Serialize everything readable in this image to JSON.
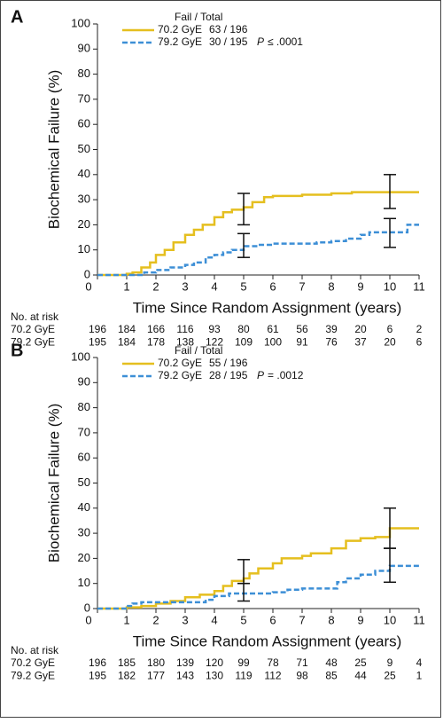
{
  "chart_data": [
    {
      "type": "line",
      "panel": "A",
      "step": true,
      "xlabel": "Time Since Random Assignment (years)",
      "ylabel": "Biochemical Failure (%)",
      "xlim": [
        0,
        11
      ],
      "xticks": [
        0,
        1,
        2,
        3,
        4,
        5,
        6,
        7,
        8,
        9,
        10,
        11
      ],
      "ylim": [
        0,
        100
      ],
      "yticks": [
        0,
        10,
        20,
        30,
        40,
        50,
        60,
        70,
        80,
        90,
        100
      ],
      "legend_title": "Fail / Total",
      "p_label": "P",
      "p_text": "≤ .0001",
      "series": [
        {
          "name": "70.2 GyE",
          "counts": "63 / 196",
          "color": "#e5bf1f",
          "dashed": false,
          "x": [
            0,
            0.5,
            1,
            1.2,
            1.5,
            1.8,
            2,
            2.3,
            2.6,
            3,
            3.3,
            3.6,
            4,
            4.3,
            4.6,
            5,
            5.3,
            5.7,
            6,
            7,
            8,
            8.7,
            11
          ],
          "values": [
            0,
            0,
            0.5,
            1,
            3,
            5,
            8,
            10,
            13,
            16,
            18,
            20,
            23,
            25,
            26,
            27,
            29,
            31,
            31.5,
            32,
            32.5,
            33,
            33
          ],
          "ci": [
            {
              "x": 5,
              "low": 20,
              "high": 32.5
            },
            {
              "x": 10,
              "low": 26.5,
              "high": 40
            }
          ]
        },
        {
          "name": "79.2 GyE",
          "counts": "30 / 195",
          "color": "#3d8fd6",
          "dashed": true,
          "x": [
            0,
            1.5,
            1.6,
            2,
            2.5,
            3,
            3.3,
            3.7,
            4,
            4.3,
            4.6,
            5,
            5.5,
            6,
            7.5,
            8,
            8.5,
            9,
            9.3,
            10.6,
            11
          ],
          "values": [
            0,
            0,
            1,
            2,
            3,
            4,
            5,
            7,
            8,
            9,
            10,
            11.5,
            12,
            12.5,
            13,
            13.5,
            14.5,
            16,
            17,
            20,
            20
          ],
          "ci": [
            {
              "x": 5,
              "low": 7,
              "high": 16.5
            },
            {
              "x": 10,
              "low": 11,
              "high": 22.5
            }
          ]
        }
      ],
      "risk_table": {
        "title": "No. at risk",
        "rows": [
          {
            "label": "70.2 GyE",
            "values": [
              196,
              184,
              166,
              116,
              93,
              80,
              61,
              56,
              39,
              20,
              6,
              2
            ]
          },
          {
            "label": "79.2 GyE",
            "values": [
              195,
              184,
              178,
              138,
              122,
              109,
              100,
              91,
              76,
              37,
              20,
              6
            ]
          }
        ]
      }
    },
    {
      "type": "line",
      "panel": "B",
      "step": true,
      "xlabel": "Time Since Random Assignment (years)",
      "ylabel": "Biochemical Failure (%)",
      "xlim": [
        0,
        11
      ],
      "xticks": [
        0,
        1,
        2,
        3,
        4,
        5,
        6,
        7,
        8,
        9,
        10,
        11
      ],
      "ylim": [
        0,
        100
      ],
      "yticks": [
        0,
        10,
        20,
        30,
        40,
        50,
        60,
        70,
        80,
        90,
        100
      ],
      "legend_title": "Fail / Total",
      "p_label": "P",
      "p_text": "= .0012",
      "series": [
        {
          "name": "70.2 GyE",
          "counts": "55 / 196",
          "color": "#e5bf1f",
          "dashed": false,
          "x": [
            0,
            0.5,
            1,
            1.5,
            2,
            2.5,
            3,
            3.5,
            4,
            4.3,
            4.6,
            5,
            5.2,
            5.5,
            6,
            6.3,
            7,
            7.3,
            8,
            8.5,
            9,
            9.5,
            10,
            11
          ],
          "values": [
            0,
            0,
            0.5,
            1,
            2,
            3,
            4.5,
            5.5,
            7,
            9,
            11,
            12,
            14,
            16,
            18,
            20,
            21,
            22,
            24,
            27,
            28,
            28.5,
            32,
            32
          ],
          "ci": [
            {
              "x": 5,
              "low": 10,
              "high": 19.5
            },
            {
              "x": 10,
              "low": 24,
              "high": 40
            }
          ]
        },
        {
          "name": "79.2 GyE",
          "counts": "28 / 195",
          "color": "#3d8fd6",
          "dashed": true,
          "x": [
            0,
            0.7,
            1,
            1.2,
            1.5,
            3.7,
            4,
            4.5,
            6,
            6.5,
            7,
            8.2,
            8.5,
            9,
            9.5,
            10,
            11
          ],
          "values": [
            0,
            0,
            1,
            2,
            2.5,
            3.5,
            5,
            6,
            6.5,
            7.5,
            8,
            10.5,
            12,
            13.5,
            15,
            17,
            17
          ],
          "ci": [
            {
              "x": 5,
              "low": 3,
              "high": 10
            },
            {
              "x": 10,
              "low": 10.5,
              "high": 24
            }
          ]
        }
      ],
      "risk_table": {
        "title": "No. at risk",
        "rows": [
          {
            "label": "70.2 GyE",
            "values": [
              196,
              185,
              180,
              139,
              120,
              99,
              78,
              71,
              48,
              25,
              9,
              4
            ]
          },
          {
            "label": "79.2 GyE",
            "values": [
              195,
              182,
              177,
              143,
              130,
              119,
              112,
              98,
              85,
              44,
              25,
              1
            ]
          }
        ]
      }
    }
  ]
}
